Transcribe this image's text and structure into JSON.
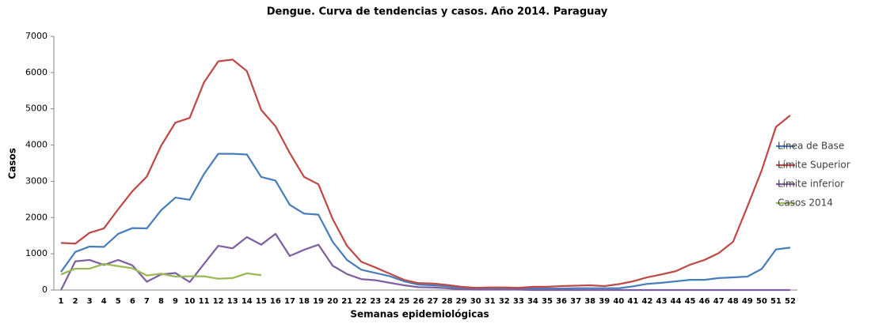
{
  "chart_data": {
    "type": "line",
    "title": "Dengue. Curva de tendencias y casos. Año 2014. Paraguay",
    "x_label": "Semanas epidemiológicas",
    "y_label": "Casos",
    "categories": [
      "1",
      "2",
      "3",
      "4",
      "5",
      "6",
      "7",
      "8",
      "9",
      "10",
      "11",
      "12",
      "13",
      "14",
      "15",
      "16",
      "17",
      "18",
      "19",
      "20",
      "21",
      "22",
      "23",
      "24",
      "25",
      "26",
      "27",
      "28",
      "29",
      "30",
      "31",
      "32",
      "33",
      "34",
      "35",
      "36",
      "37",
      "38",
      "39",
      "40",
      "41",
      "42",
      "43",
      "44",
      "45",
      "46",
      "47",
      "48",
      "49",
      "50",
      "51",
      "52"
    ],
    "series": [
      {
        "name": "Línea de Base",
        "color": "#4a7ebb",
        "values": [
          500,
          1050,
          1200,
          1190,
          1550,
          1710,
          1700,
          2200,
          2550,
          2490,
          3200,
          3760,
          3760,
          3740,
          3120,
          3020,
          2350,
          2110,
          2080,
          1330,
          830,
          560,
          470,
          380,
          240,
          150,
          130,
          100,
          60,
          40,
          50,
          50,
          40,
          40,
          40,
          40,
          50,
          50,
          50,
          50,
          100,
          170,
          200,
          240,
          280,
          280,
          330,
          350,
          370,
          580,
          1120,
          1170
        ]
      },
      {
        "name": "Límite Superior",
        "color": "#be4b48",
        "values": [
          1300,
          1280,
          1580,
          1700,
          2230,
          2730,
          3130,
          3980,
          4620,
          4750,
          5730,
          6310,
          6360,
          6040,
          4970,
          4520,
          3780,
          3120,
          2920,
          1960,
          1220,
          780,
          620,
          450,
          280,
          190,
          180,
          140,
          90,
          60,
          70,
          70,
          60,
          90,
          90,
          110,
          120,
          130,
          110,
          160,
          240,
          350,
          430,
          520,
          700,
          830,
          1020,
          1330,
          2300,
          3300,
          4500,
          4820
        ]
      },
      {
        "name": "Límite inferior",
        "color": "#7d60a0",
        "values": [
          0,
          790,
          830,
          690,
          830,
          680,
          230,
          430,
          470,
          220,
          720,
          1220,
          1150,
          1460,
          1250,
          1550,
          940,
          1110,
          1250,
          670,
          440,
          300,
          270,
          200,
          130,
          80,
          70,
          50,
          20,
          10,
          10,
          10,
          10,
          0,
          0,
          0,
          0,
          0,
          0,
          0,
          0,
          0,
          0,
          0,
          0,
          0,
          0,
          0,
          0,
          0,
          0,
          0
        ]
      },
      {
        "name": "Casos 2014",
        "color": "#98b954",
        "values": [
          430,
          590,
          590,
          720,
          660,
          600,
          400,
          450,
          370,
          380,
          380,
          310,
          330,
          460,
          410,
          null,
          null,
          null,
          null,
          null,
          null,
          null,
          null,
          null,
          null,
          null,
          null,
          null,
          null,
          null,
          null,
          null,
          null,
          null,
          null,
          null,
          null,
          null,
          null,
          null,
          null,
          null,
          null,
          null,
          null,
          null,
          null,
          null,
          null,
          null,
          null,
          null
        ]
      }
    ],
    "ylim": [
      0,
      7000
    ],
    "yticks": [
      0,
      1000,
      2000,
      3000,
      4000,
      5000,
      6000,
      7000
    ],
    "grid": false,
    "legend": "right"
  }
}
